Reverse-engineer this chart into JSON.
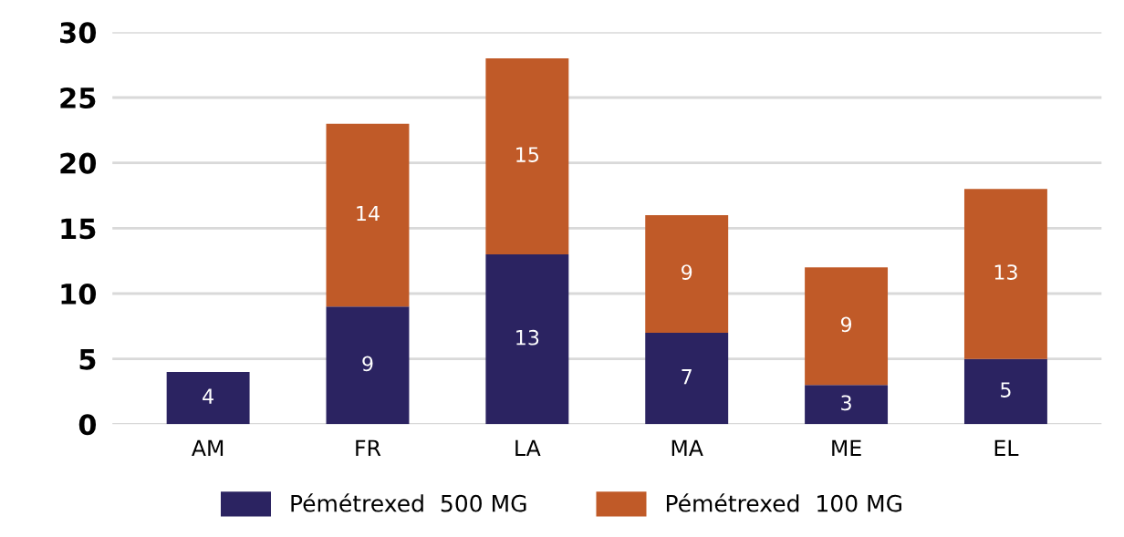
{
  "chart_data": {
    "type": "bar",
    "stacked": true,
    "categories": [
      "AM",
      "FR",
      "LA",
      "MA",
      "ME",
      "EL"
    ],
    "series": [
      {
        "name": "Pémétrexed  500 MG",
        "color": "#2b2361",
        "values": [
          4,
          9,
          13,
          7,
          3,
          5
        ]
      },
      {
        "name": "Pémétrexed  100 MG",
        "color": "#c05a28",
        "values": [
          null,
          14,
          15,
          9,
          9,
          13
        ]
      }
    ],
    "ylim": [
      0,
      30
    ],
    "yticks": [
      0,
      5,
      10,
      15,
      20,
      25,
      30
    ],
    "grid": "y",
    "legend": "bottom",
    "data_labels": true
  }
}
